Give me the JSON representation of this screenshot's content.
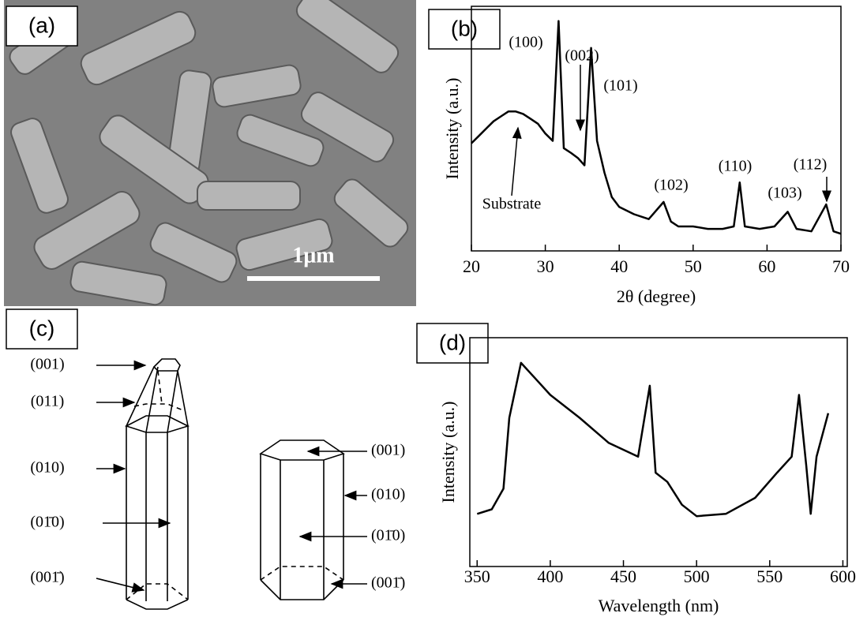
{
  "panels": {
    "labels": [
      "(a)",
      "(b)",
      "(c)",
      "(d)"
    ],
    "scale_bar": "1μm",
    "crystal_left": [
      "(001)",
      "(011)",
      "(010)",
      "(01̄0)",
      "(001̄)"
    ],
    "crystal_right": [
      "(001)",
      "(010)",
      "(01̄0)",
      "(001̄)"
    ]
  },
  "chart_data": [
    {
      "type": "line",
      "xlabel": "2θ (degree)",
      "ylabel": "Intensity (a.u.)",
      "color": "#000000",
      "xlim": [
        20,
        70
      ],
      "ylim": [
        0,
        100
      ],
      "xticks": [
        20,
        30,
        40,
        50,
        60,
        70
      ],
      "annotations": [
        "(100)",
        "(002)",
        "(101)",
        "(102)",
        "(110)",
        "(103)",
        "(112)",
        "Substrate"
      ],
      "x": [
        20,
        21,
        22,
        23,
        24,
        25,
        26,
        27,
        28,
        29,
        30,
        31,
        31.8,
        32.5,
        33.5,
        34.4,
        35.3,
        36.2,
        37,
        38,
        39,
        40,
        42,
        44,
        46,
        47,
        48,
        50,
        52,
        54,
        55.5,
        56.3,
        57,
        59,
        61,
        62.8,
        64,
        66,
        68,
        69,
        70
      ],
      "values": [
        44,
        47,
        50,
        53,
        55,
        57,
        57,
        56,
        54,
        52,
        48,
        45,
        94,
        42,
        40,
        38,
        35,
        83,
        45,
        32,
        22,
        18,
        15,
        13,
        20,
        12,
        10,
        10,
        9,
        9,
        10,
        28,
        10,
        9,
        10,
        16,
        9,
        8,
        19,
        8,
        7
      ]
    },
    {
      "type": "line",
      "xlabel": "Wavelength (nm)",
      "ylabel": "Intensity (a.u.)",
      "color": "#000000",
      "xlim": [
        345,
        603
      ],
      "ylim": [
        0,
        100
      ],
      "xticks": [
        350,
        400,
        450,
        500,
        550,
        600
      ],
      "x": [
        350,
        360,
        368,
        372,
        380,
        390,
        400,
        420,
        440,
        460,
        468,
        472,
        480,
        490,
        500,
        520,
        540,
        555,
        565,
        570,
        575,
        578,
        582,
        590
      ],
      "values": [
        23,
        25,
        34,
        65,
        89,
        82,
        75,
        65,
        54,
        48,
        79,
        41,
        37,
        27,
        22,
        23,
        30,
        41,
        48,
        75,
        44,
        23,
        48,
        67
      ]
    }
  ]
}
